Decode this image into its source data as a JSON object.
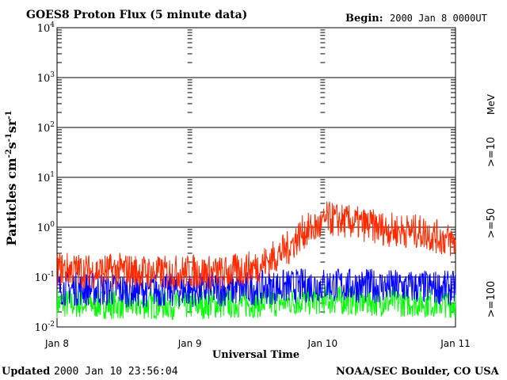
{
  "chart_data": {
    "type": "line",
    "title": "GOES8 Proton Flux (5 minute data)",
    "begin_label": "Begin:",
    "begin_value": "2000 Jan 8 0000UT",
    "ylabel_parts": [
      "Particles cm",
      "-2",
      "s",
      "-1",
      "sr",
      "-1"
    ],
    "xlabel": "Universal Time",
    "x_ticks": [
      "Jan 8",
      "Jan 9",
      "Jan 10",
      "Jan 11"
    ],
    "y_scale": "log",
    "ylim": [
      0.01,
      10000
    ],
    "y_ticks": [
      {
        "base": "10",
        "exp": "-2"
      },
      {
        "base": "10",
        "exp": "-1"
      },
      {
        "base": "10",
        "exp": "0"
      },
      {
        "base": "10",
        "exp": "1"
      },
      {
        "base": "10",
        "exp": "2"
      },
      {
        "base": "10",
        "exp": "3"
      },
      {
        "base": "10",
        "exp": "4"
      }
    ],
    "units_label": "MeV",
    "xlim_days": [
      0,
      3
    ],
    "series": [
      {
        "name": ">=10",
        "color": "#ff2a00",
        "x_days": [
          0,
          0.25,
          0.5,
          0.75,
          1.0,
          1.25,
          1.5,
          1.6,
          1.75,
          1.85,
          2.0,
          2.03,
          2.25,
          2.5,
          2.75,
          2.9,
          3.0
        ],
        "y": [
          0.15,
          0.13,
          0.14,
          0.12,
          0.13,
          0.12,
          0.16,
          0.22,
          0.4,
          0.8,
          1.1,
          1.5,
          1.2,
          0.9,
          0.8,
          0.6,
          0.5
        ]
      },
      {
        "name": ">=50",
        "color": "#0000ff",
        "x_days": [
          0,
          0.5,
          1.0,
          1.5,
          2.0,
          2.5,
          3.0
        ],
        "y": [
          0.06,
          0.055,
          0.055,
          0.06,
          0.07,
          0.065,
          0.06
        ]
      },
      {
        "name": ">=100",
        "color": "#00ff00",
        "x_days": [
          0,
          0.5,
          1.0,
          1.5,
          2.0,
          2.5,
          3.0
        ],
        "y": [
          0.03,
          0.028,
          0.028,
          0.03,
          0.035,
          0.032,
          0.03
        ]
      }
    ]
  },
  "footer": {
    "updated_label": "Updated",
    "updated_value": "2000 Jan 10 23:56:04",
    "credit": "NOAA/SEC Boulder, CO USA"
  }
}
